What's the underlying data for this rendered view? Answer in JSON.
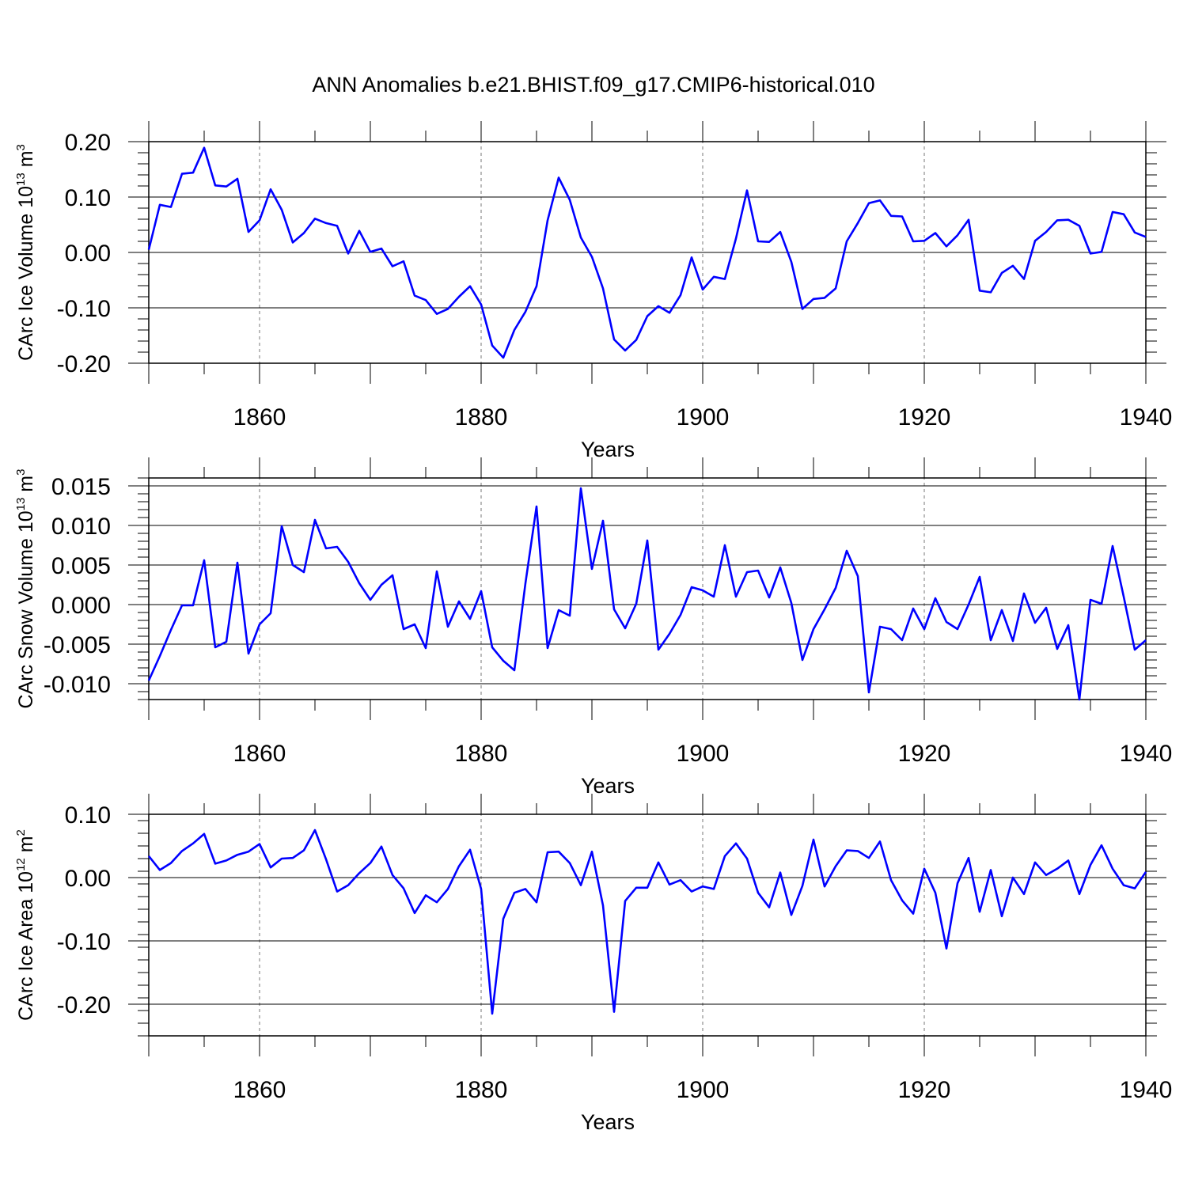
{
  "title": "ANN Anomalies b.e21.BHIST.f09_g17.CMIP6-historical.010",
  "line_color": "#0000ff",
  "chart_data": [
    {
      "type": "line",
      "title": "ANN Anomalies b.e21.BHIST.f09_g17.CMIP6-historical.010",
      "ylabel": {
        "text": "CArc Ice Volume 10",
        "sup1": "13",
        "mid": " m",
        "sup2": "3"
      },
      "xlabel": "Years",
      "xlim": [
        1850,
        1940
      ],
      "ylim": [
        -0.2,
        0.2
      ],
      "x_ticks": [
        1860,
        1880,
        1900,
        1920,
        1940
      ],
      "x_tick_labels": [
        "1860",
        "1880",
        "1900",
        "1920",
        "1940"
      ],
      "y_ticks": [
        0.2,
        0.1,
        0.0,
        -0.1,
        -0.2
      ],
      "y_tick_labels": [
        "0.20",
        "0.10",
        "0.00",
        "-0.10",
        "-0.20"
      ],
      "x": [
        1850,
        1851,
        1852,
        1853,
        1854,
        1855,
        1856,
        1857,
        1858,
        1859,
        1860,
        1861,
        1862,
        1863,
        1864,
        1865,
        1866,
        1867,
        1868,
        1869,
        1870,
        1871,
        1872,
        1873,
        1874,
        1875,
        1876,
        1877,
        1878,
        1879,
        1880,
        1881,
        1882,
        1883,
        1884,
        1885,
        1886,
        1887,
        1888,
        1889,
        1890,
        1891,
        1892,
        1893,
        1894,
        1895,
        1896,
        1897,
        1898,
        1899,
        1900,
        1901,
        1902,
        1903,
        1904,
        1905,
        1906,
        1907,
        1908,
        1909,
        1910,
        1911,
        1912,
        1913,
        1914,
        1915,
        1916,
        1917,
        1918,
        1919,
        1920,
        1921,
        1922,
        1923,
        1924,
        1925,
        1926,
        1927,
        1928,
        1929,
        1930,
        1931,
        1932,
        1933,
        1934,
        1935,
        1936,
        1937,
        1938,
        1939,
        1940
      ],
      "values": [
        0.005,
        0.086,
        0.082,
        0.142,
        0.144,
        0.189,
        0.121,
        0.119,
        0.133,
        0.037,
        0.058,
        0.114,
        0.077,
        0.018,
        0.035,
        0.061,
        0.053,
        0.048,
        -0.002,
        0.039,
        0.001,
        0.007,
        -0.025,
        -0.016,
        -0.078,
        -0.086,
        -0.111,
        -0.102,
        -0.08,
        -0.061,
        -0.094,
        -0.168,
        -0.19,
        -0.14,
        -0.107,
        -0.061,
        0.058,
        0.135,
        0.095,
        0.027,
        -0.008,
        -0.065,
        -0.157,
        -0.177,
        -0.158,
        -0.115,
        -0.097,
        -0.109,
        -0.077,
        -0.009,
        -0.067,
        -0.044,
        -0.048,
        0.025,
        0.112,
        0.02,
        0.019,
        0.037,
        -0.017,
        -0.102,
        -0.084,
        -0.082,
        -0.065,
        0.02,
        0.053,
        0.089,
        0.094,
        0.066,
        0.065,
        0.02,
        0.021,
        0.035,
        0.011,
        0.031,
        0.059,
        -0.069,
        -0.072,
        -0.037,
        -0.024,
        -0.048,
        0.021,
        0.037,
        0.058,
        0.059,
        0.048,
        -0.002,
        0.001,
        0.073,
        0.069,
        0.036,
        0.028
      ]
    },
    {
      "type": "line",
      "ylabel": {
        "text": "CArc Snow Volume 10",
        "sup1": "13",
        "mid": " m",
        "sup2": "3"
      },
      "xlabel": "Years",
      "xlim": [
        1850,
        1940
      ],
      "ylim": [
        -0.012,
        0.016
      ],
      "x_ticks": [
        1860,
        1880,
        1900,
        1920,
        1940
      ],
      "x_tick_labels": [
        "1860",
        "1880",
        "1900",
        "1920",
        "1940"
      ],
      "y_ticks": [
        0.015,
        0.01,
        0.005,
        0.0,
        -0.005,
        -0.01
      ],
      "y_tick_labels": [
        "0.015",
        "0.010",
        "0.005",
        "0.000",
        "-0.005",
        "-0.010"
      ],
      "x": [
        1850,
        1851,
        1852,
        1853,
        1854,
        1855,
        1856,
        1857,
        1858,
        1859,
        1860,
        1861,
        1862,
        1863,
        1864,
        1865,
        1866,
        1867,
        1868,
        1869,
        1870,
        1871,
        1872,
        1873,
        1874,
        1875,
        1876,
        1877,
        1878,
        1879,
        1880,
        1881,
        1882,
        1883,
        1884,
        1885,
        1886,
        1887,
        1888,
        1889,
        1890,
        1891,
        1892,
        1893,
        1894,
        1895,
        1896,
        1897,
        1898,
        1899,
        1900,
        1901,
        1902,
        1903,
        1904,
        1905,
        1906,
        1907,
        1908,
        1909,
        1910,
        1911,
        1912,
        1913,
        1914,
        1915,
        1916,
        1917,
        1918,
        1919,
        1920,
        1921,
        1922,
        1923,
        1924,
        1925,
        1926,
        1927,
        1928,
        1929,
        1930,
        1931,
        1932,
        1933,
        1934,
        1935,
        1936,
        1937,
        1938,
        1939,
        1940
      ],
      "values": [
        -0.0096,
        -0.0065,
        -0.0032,
        -0.0001,
        -0.0001,
        0.0056,
        -0.0054,
        -0.0047,
        0.0053,
        -0.0062,
        -0.0025,
        -0.0011,
        0.0099,
        0.005,
        0.0041,
        0.0107,
        0.0071,
        0.0073,
        0.0054,
        0.0027,
        0.0006,
        0.0025,
        0.0037,
        -0.0031,
        -0.0025,
        -0.0055,
        0.0042,
        -0.0028,
        0.0004,
        -0.0018,
        0.0017,
        -0.0054,
        -0.0071,
        -0.0083,
        0.0027,
        0.0124,
        -0.0055,
        -0.0007,
        -0.0014,
        0.0147,
        0.0045,
        0.0106,
        -0.0006,
        -0.003,
        0.0001,
        0.0081,
        -0.0057,
        -0.0037,
        -0.0013,
        0.0022,
        0.0018,
        0.001,
        0.0075,
        0.001,
        0.0041,
        0.0043,
        0.0009,
        0.0047,
        0.0002,
        -0.007,
        -0.0031,
        -0.0006,
        0.0021,
        0.0068,
        0.0036,
        -0.0111,
        -0.0028,
        -0.0031,
        -0.0045,
        -0.0005,
        -0.0031,
        0.0008,
        -0.0022,
        -0.0031,
        0.0,
        0.0035,
        -0.0045,
        -0.0007,
        -0.0046,
        0.0014,
        -0.0023,
        -0.0004,
        -0.0056,
        -0.0026,
        -0.012,
        0.0006,
        0.0001,
        0.0074,
        0.001,
        -0.0057,
        -0.0045
      ]
    },
    {
      "type": "line",
      "ylabel": {
        "text": "CArc Ice Area 10",
        "sup1": "12",
        "mid": " m",
        "sup2": "2"
      },
      "xlabel": "Years",
      "xlim": [
        1850,
        1940
      ],
      "ylim": [
        -0.25,
        0.1
      ],
      "x_ticks": [
        1860,
        1880,
        1900,
        1920,
        1940
      ],
      "x_tick_labels": [
        "1860",
        "1880",
        "1900",
        "1920",
        "1940"
      ],
      "y_ticks": [
        0.1,
        0.0,
        -0.1,
        -0.2
      ],
      "y_tick_labels": [
        "0.10",
        "0.00",
        "-0.10",
        "-0.20"
      ],
      "x": [
        1850,
        1851,
        1852,
        1853,
        1854,
        1855,
        1856,
        1857,
        1858,
        1859,
        1860,
        1861,
        1862,
        1863,
        1864,
        1865,
        1866,
        1867,
        1868,
        1869,
        1870,
        1871,
        1872,
        1873,
        1874,
        1875,
        1876,
        1877,
        1878,
        1879,
        1880,
        1881,
        1882,
        1883,
        1884,
        1885,
        1886,
        1887,
        1888,
        1889,
        1890,
        1891,
        1892,
        1893,
        1894,
        1895,
        1896,
        1897,
        1898,
        1899,
        1900,
        1901,
        1902,
        1903,
        1904,
        1905,
        1906,
        1907,
        1908,
        1909,
        1910,
        1911,
        1912,
        1913,
        1914,
        1915,
        1916,
        1917,
        1918,
        1919,
        1920,
        1921,
        1922,
        1923,
        1924,
        1925,
        1926,
        1927,
        1928,
        1929,
        1930,
        1931,
        1932,
        1933,
        1934,
        1935,
        1936,
        1937,
        1938,
        1939,
        1940
      ],
      "values": [
        0.034,
        0.012,
        0.023,
        0.042,
        0.054,
        0.069,
        0.022,
        0.027,
        0.036,
        0.041,
        0.053,
        0.016,
        0.03,
        0.031,
        0.043,
        0.075,
        0.029,
        -0.022,
        -0.012,
        0.007,
        0.023,
        0.049,
        0.004,
        -0.017,
        -0.056,
        -0.028,
        -0.039,
        -0.018,
        0.018,
        0.044,
        -0.018,
        -0.215,
        -0.065,
        -0.024,
        -0.018,
        -0.039,
        0.04,
        0.041,
        0.023,
        -0.012,
        0.041,
        -0.044,
        -0.212,
        -0.037,
        -0.016,
        -0.016,
        0.024,
        -0.011,
        -0.004,
        -0.022,
        -0.014,
        -0.018,
        0.034,
        0.054,
        0.03,
        -0.024,
        -0.047,
        0.008,
        -0.059,
        -0.013,
        0.06,
        -0.014,
        0.018,
        0.043,
        0.042,
        0.031,
        0.057,
        -0.004,
        -0.036,
        -0.057,
        0.014,
        -0.024,
        -0.112,
        -0.009,
        0.031,
        -0.054,
        0.012,
        -0.061,
        0.0,
        -0.026,
        0.024,
        0.004,
        0.014,
        0.027,
        -0.026,
        0.02,
        0.051,
        0.014,
        -0.012,
        -0.017,
        0.009
      ]
    }
  ]
}
